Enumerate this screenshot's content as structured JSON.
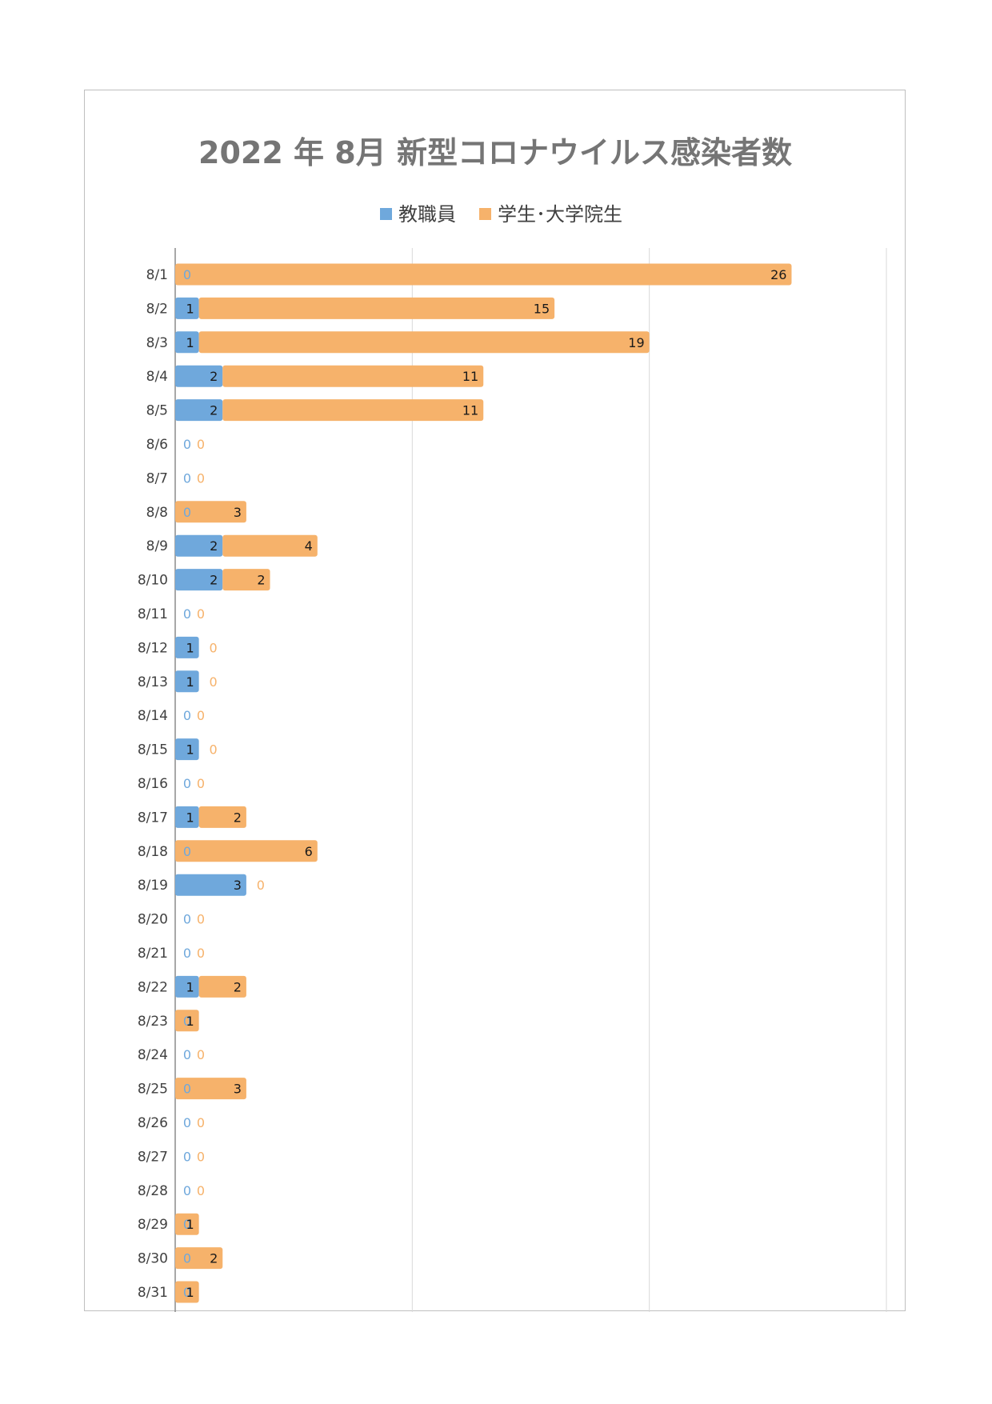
{
  "chart_data": {
    "type": "bar",
    "orientation": "horizontal",
    "stacked": true,
    "title": "2022 年 8月 新型コロナウイルス感染者数",
    "legend_position": "top",
    "categories": [
      "8/1",
      "8/2",
      "8/3",
      "8/4",
      "8/5",
      "8/6",
      "8/7",
      "8/8",
      "8/9",
      "8/10",
      "8/11",
      "8/12",
      "8/13",
      "8/14",
      "8/15",
      "8/16",
      "8/17",
      "8/18",
      "8/19",
      "8/20",
      "8/21",
      "8/22",
      "8/23",
      "8/24",
      "8/25",
      "8/26",
      "8/27",
      "8/28",
      "8/29",
      "8/30",
      "8/31"
    ],
    "series": [
      {
        "name": "教職員",
        "color": "#6fa8dc",
        "values": [
          0,
          1,
          1,
          2,
          2,
          0,
          0,
          0,
          2,
          2,
          0,
          1,
          1,
          0,
          1,
          0,
          1,
          0,
          3,
          0,
          0,
          1,
          0,
          0,
          0,
          0,
          0,
          0,
          0,
          0,
          0
        ]
      },
      {
        "name": "学生･大学院生",
        "color": "#f6b26b",
        "values": [
          26,
          15,
          19,
          11,
          11,
          0,
          0,
          3,
          4,
          2,
          0,
          0,
          0,
          0,
          0,
          0,
          2,
          6,
          0,
          0,
          0,
          2,
          1,
          0,
          3,
          0,
          0,
          0,
          1,
          2,
          1
        ]
      }
    ],
    "xlim": [
      0,
      30
    ],
    "grid": true,
    "data_labels": true
  }
}
